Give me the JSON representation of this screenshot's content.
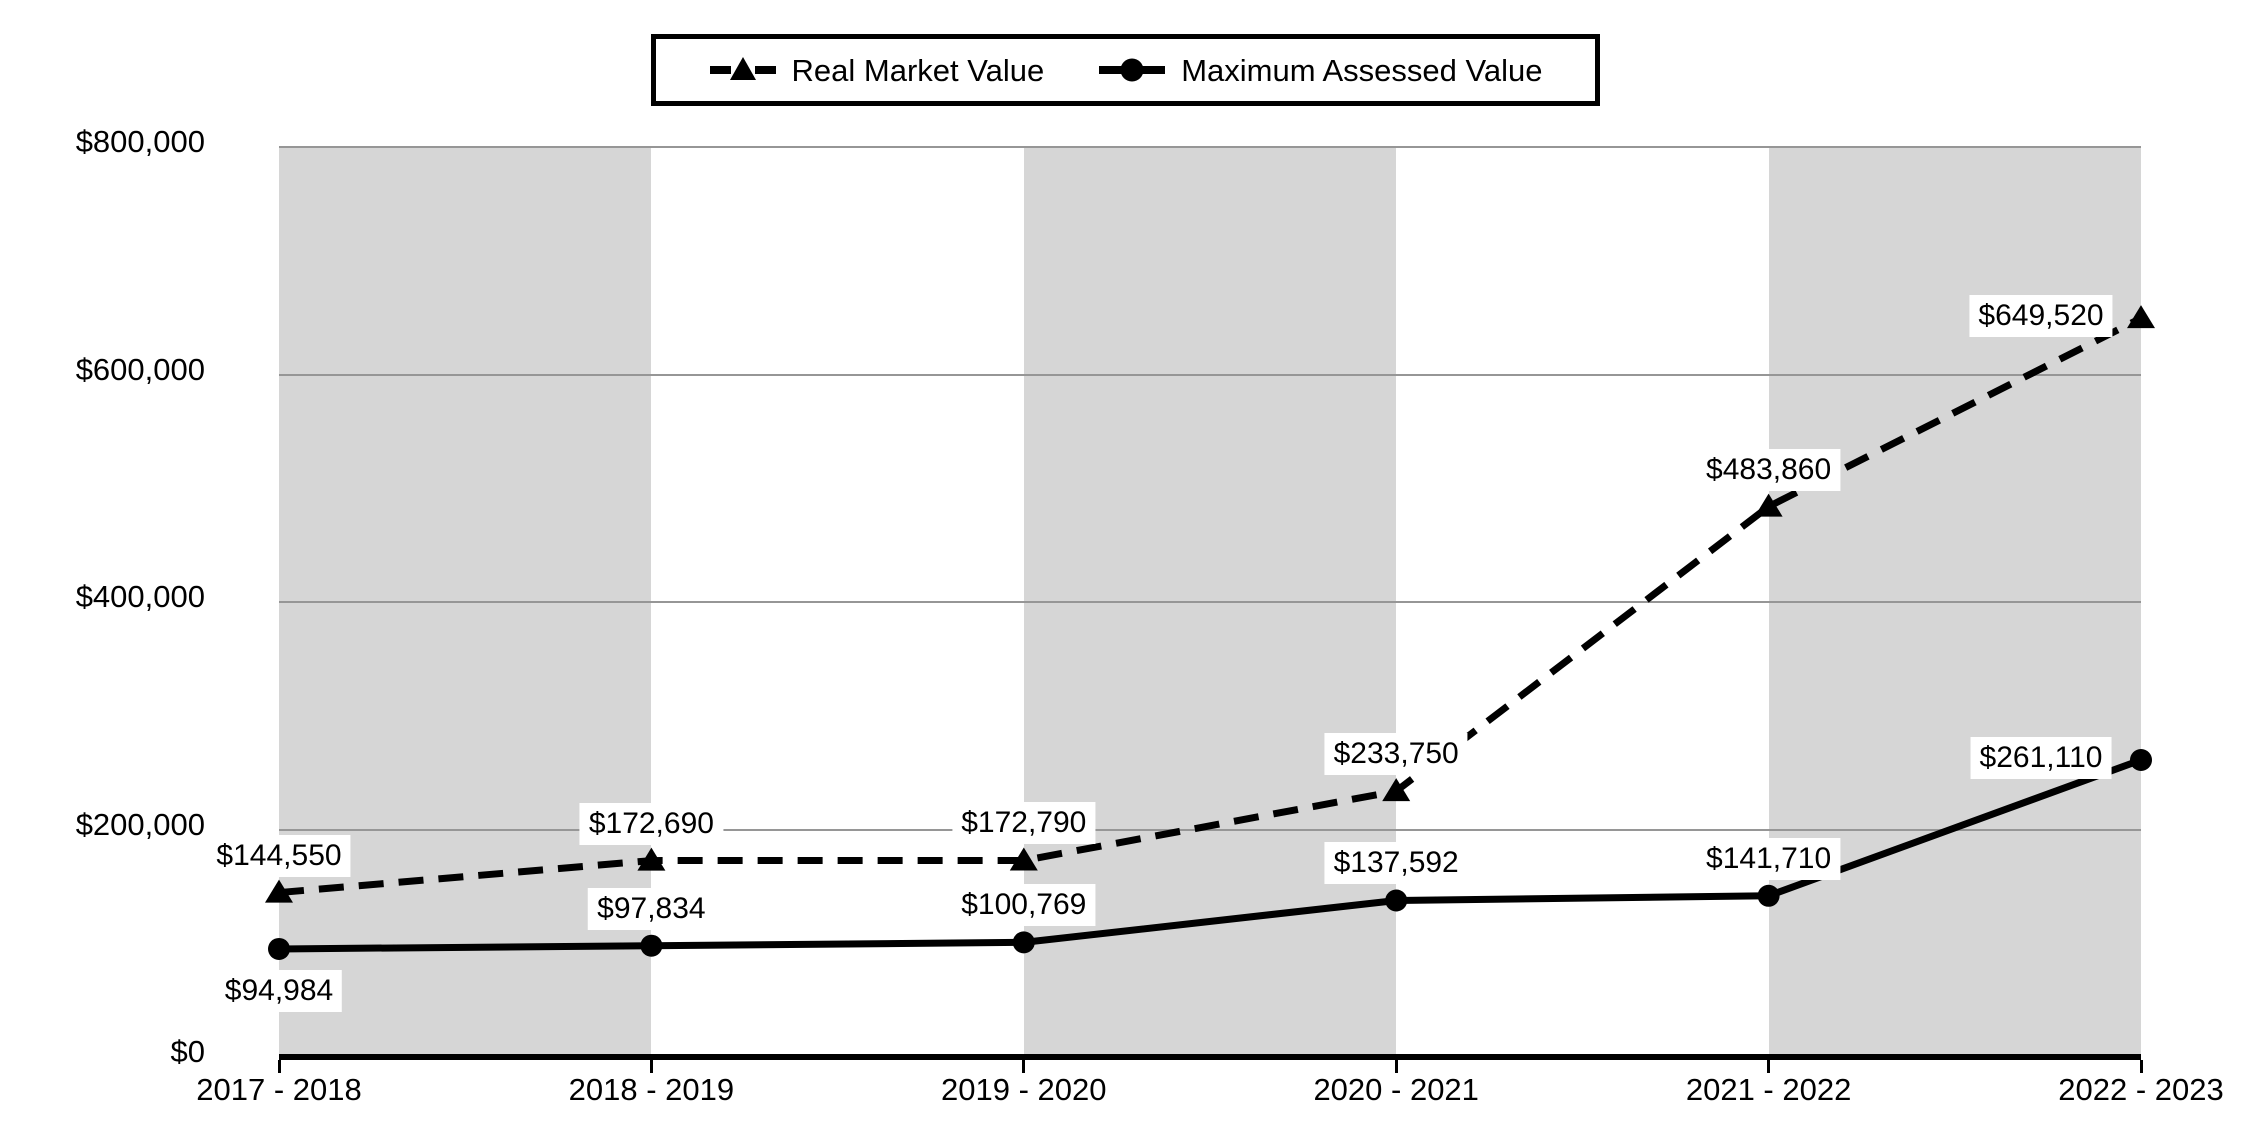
{
  "chart_data": {
    "type": "line",
    "title": "",
    "categories": [
      "2017 - 2018",
      "2018 - 2019",
      "2019 - 2020",
      "2020 - 2021",
      "2021 - 2022",
      "2022 - 2023"
    ],
    "series": [
      {
        "name": "Real Market Value",
        "line_style": "dashed",
        "marker": "triangle",
        "color": "#000000",
        "values": [
          144550,
          172690,
          172790,
          233750,
          483860,
          649520
        ],
        "data_labels": [
          "$144,550",
          "$172,690",
          "$172,790",
          "$233,750",
          "$483,860",
          "$649,520"
        ],
        "label_positions": [
          "above",
          "above",
          "above",
          "above",
          "above",
          "left"
        ]
      },
      {
        "name": "Maximum Assessed Value",
        "line_style": "solid",
        "marker": "circle",
        "color": "#000000",
        "values": [
          94984,
          97834,
          100769,
          137592,
          141710,
          261110
        ],
        "data_labels": [
          "$94,984",
          "$97,834",
          "$100,769",
          "$137,592",
          "$141,710",
          "$261,110"
        ],
        "label_positions": [
          "below",
          "above",
          "above",
          "above",
          "above",
          "left"
        ]
      }
    ],
    "xlabel": "",
    "ylabel": "",
    "ylim": [
      0,
      800000
    ],
    "ytick_interval": 200000,
    "ytick_labels": [
      "$0",
      "$200,000",
      "$400,000",
      "$600,000",
      "$800,000"
    ],
    "grid": true,
    "legend_position": "top-center",
    "plot_bands_alternating_start_gray": true
  },
  "legend": {
    "items": [
      {
        "label": "Real Market Value",
        "marker": "dashed-line-triangle-marker"
      },
      {
        "label": "Maximum Assessed Value",
        "marker": "solid-line-circle-marker"
      }
    ]
  },
  "colors": {
    "series": "#000000",
    "band": "#d6d6d6",
    "gridline": "#969696",
    "background": "#ffffff",
    "data_label_background": "#ffffff",
    "text": "#000000"
  }
}
